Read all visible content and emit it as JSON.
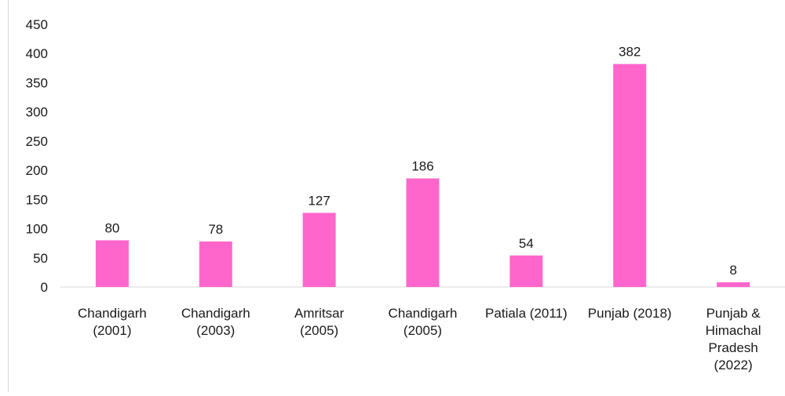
{
  "chart_data": {
    "type": "bar",
    "title": "",
    "xlabel": "",
    "ylabel": "",
    "categories": [
      [
        "Chandigarh",
        "(2001)"
      ],
      [
        "Chandigarh",
        "(2003)"
      ],
      [
        "Amritsar",
        "(2005)"
      ],
      [
        "Chandigarh",
        "(2005)"
      ],
      [
        "Patiala (2011)"
      ],
      [
        "Punjab (2018)"
      ],
      [
        "Punjab &",
        "Himachal",
        "Pradesh",
        "(2022)"
      ]
    ],
    "values": [
      80,
      78,
      127,
      186,
      54,
      382,
      8
    ],
    "data_labels": [
      "80",
      "78",
      "127",
      "186",
      "54",
      "382",
      "8"
    ],
    "yticks": [
      0,
      50,
      100,
      150,
      200,
      250,
      300,
      350,
      400,
      450
    ],
    "ylim": [
      0,
      450
    ],
    "grid": false,
    "legend": "none",
    "bar_color": "#ff66cc"
  }
}
